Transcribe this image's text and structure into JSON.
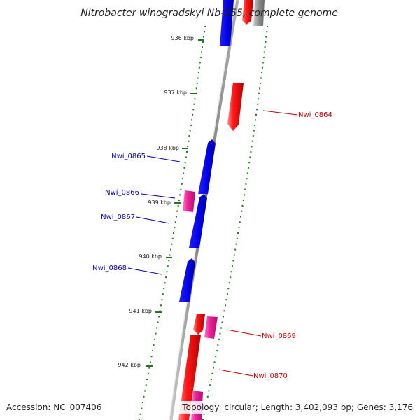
{
  "title": "Nitrobacter winogradskyi Nb-255, complete genome",
  "footer": {
    "accession": "Accession: NC_007406",
    "topology": "Topology: circular; Length: 3,402,093 bp; Genes: 3,176"
  },
  "colors": {
    "backbone": "#808080",
    "forward_gene": "#e00000",
    "reverse_gene": "#0000dd",
    "pseudo_gene": "#e0208c",
    "label_forward": "#d00000",
    "label_reverse": "#0000bb",
    "ticks": "#1a7a1a"
  },
  "scale": {
    "unit": "kbp",
    "labels": [
      "936 kbp",
      "937 kbp",
      "938 kbp",
      "939 kbp",
      "940 kbp",
      "941 kbp",
      "942 kbp"
    ]
  },
  "gene_labels": [
    {
      "id": "Nwi_0864",
      "text": "Nwi_0864",
      "strand": "forward"
    },
    {
      "id": "Nwi_0865",
      "text": "Nwi_0865",
      "strand": "reverse"
    },
    {
      "id": "Nwi_0866",
      "text": "Nwi_0866",
      "strand": "reverse"
    },
    {
      "id": "Nwi_0867",
      "text": "Nwi_0867",
      "strand": "reverse"
    },
    {
      "id": "Nwi_0868",
      "text": "Nwi_0868",
      "strand": "reverse"
    },
    {
      "id": "Nwi_0869",
      "text": "Nwi_0869",
      "strand": "forward"
    },
    {
      "id": "Nwi_0870",
      "text": "Nwi_0870",
      "strand": "forward"
    }
  ]
}
